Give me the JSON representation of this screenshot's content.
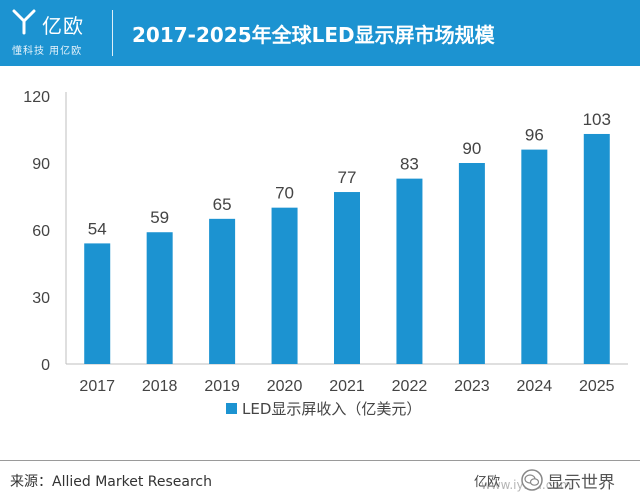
{
  "header": {
    "logo_name": "亿欧",
    "logo_slogan": "懂科技 用亿欧",
    "title": "2017-2025年全球LED显示屏市场规模"
  },
  "colors": {
    "header_bg": "#1c93d1",
    "bar": "#1c93d1",
    "axis_text": "#444444",
    "grid": "#d9d9d9"
  },
  "chart_data": {
    "type": "bar",
    "title": "2017-2025年全球LED显示屏市场规模",
    "categories": [
      "2017",
      "2018",
      "2019",
      "2020",
      "2021",
      "2022",
      "2023",
      "2024",
      "2025"
    ],
    "series": [
      {
        "name": "LED显示屏收入（亿美元）",
        "values": [
          54,
          59,
          65,
          70,
          77,
          83,
          90,
          96,
          103
        ]
      }
    ],
    "ylim": [
      0,
      120
    ],
    "yticks": [
      0,
      30,
      60,
      90,
      120
    ],
    "xlabel": "",
    "ylabel": "",
    "data_labels": true,
    "grid": false,
    "legend_position": "bottom"
  },
  "footer": {
    "source": "来源：Allied Market Research",
    "brand": "亿欧",
    "watermark_text": "显示世界",
    "watermark_url": "www.iyiou.com"
  }
}
